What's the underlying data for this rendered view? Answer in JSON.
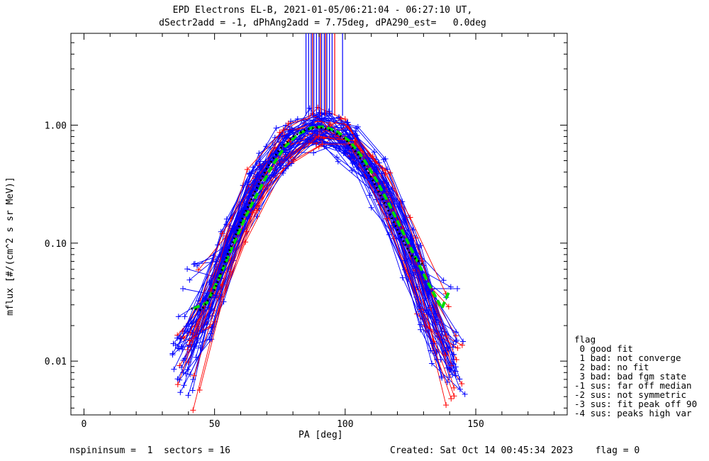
{
  "header": {
    "title_line1": "EPD Electrons EL-B, 2021-01-05/06:21:04 - 06:27:10 UT,",
    "title_line2": "dSectr2add = -1, dPhAng2add = 7.75deg, dPA290_est=   0.0deg"
  },
  "chart_data": {
    "type": "line",
    "title": "EPD Electrons EL-B, 2021-01-05/06:21:04 - 06:27:10 UT,",
    "xlabel": "PA [deg]",
    "ylabel": "mflux [#/(cm^2 s sr MeV)]",
    "xlim": [
      -5,
      185
    ],
    "ylim": [
      0.0035,
      6.0
    ],
    "yscale": "log",
    "x_ticks": [
      0,
      50,
      100,
      150
    ],
    "y_ticks": [
      0.01,
      0.1,
      1.0
    ],
    "y_tick_labels": [
      "0.01",
      "0.10",
      "1.00"
    ],
    "grid": false,
    "series_colors": {
      "blue": "#0000ff",
      "red": "#ff0000",
      "green": "#00dd00",
      "black": "#000000"
    },
    "peak_markers": {
      "blue_x": [
        85,
        86,
        87,
        88,
        89,
        90,
        91,
        92,
        93,
        94,
        95,
        99
      ],
      "red_x": [
        87.5,
        90.5,
        92.5,
        96
      ],
      "y_range": [
        1.2,
        6.0
      ]
    },
    "curves": [
      {
        "color": "green",
        "style": "dashed",
        "x": [
          42,
          47,
          52,
          57,
          62,
          67,
          72,
          77,
          82,
          87,
          92,
          97,
          102,
          107,
          112,
          117,
          122,
          127,
          132,
          137,
          140
        ],
        "y": [
          0.028,
          0.031,
          0.052,
          0.095,
          0.17,
          0.28,
          0.45,
          0.66,
          0.84,
          0.95,
          0.97,
          0.88,
          0.72,
          0.52,
          0.34,
          0.21,
          0.125,
          0.075,
          0.045,
          0.028,
          0.04
        ]
      },
      {
        "color": "black",
        "style": "dotted",
        "x": [
          41,
          45,
          50,
          55,
          60,
          65,
          70,
          75,
          80,
          85,
          90,
          95,
          100,
          105,
          110,
          115,
          120,
          125,
          130
        ],
        "y": [
          0.028,
          0.027,
          0.04,
          0.08,
          0.15,
          0.26,
          0.43,
          0.63,
          0.8,
          0.92,
          0.96,
          0.9,
          0.76,
          0.56,
          0.36,
          0.22,
          0.13,
          0.08,
          0.065
        ]
      }
    ]
  },
  "footer": {
    "left": "nspininsum =  1  sectors = 16",
    "right": "Created: Sat Oct 14 00:45:34 2023    flag = 0"
  },
  "legend": {
    "title": "flag",
    "items": [
      " 0 good fit",
      " 1 bad: not converge",
      " 2 bad: no fit",
      " 3 bad: bad fgm state",
      "-1 sus: far off median",
      "-2 sus: not symmetric",
      "-3 sus: fit peak off 90",
      "-4 sus: peaks high var"
    ]
  }
}
